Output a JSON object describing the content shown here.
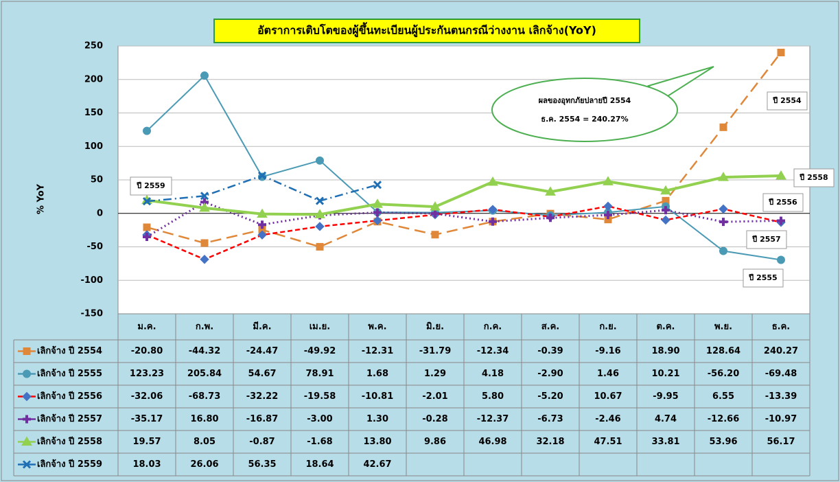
{
  "chart_data": {
    "type": "line",
    "title": "อัตราการเติบโตของผู้ขึ้นทะเบียนผู้ประกันตนกรณีว่างงาน เลิกจ้าง(YoY)",
    "y_label": "% YoY",
    "categories": [
      "ม.ค.",
      "ก.พ.",
      "มี.ค.",
      "เม.ย.",
      "พ.ค.",
      "มิ.ย.",
      "ก.ค.",
      "ส.ค.",
      "ก.ย.",
      "ต.ค.",
      "พ.ย.",
      "ธ.ค."
    ],
    "ylim": [
      -150,
      250
    ],
    "yticks": [
      -150,
      -100,
      -50,
      0,
      50,
      100,
      150,
      200,
      250
    ],
    "grid": true,
    "series": [
      {
        "name": "เลิกจ้าง ปี 2554",
        "color": "#e0883a",
        "values": [
          -20.8,
          -44.32,
          -24.47,
          -49.92,
          -12.31,
          -31.79,
          -12.34,
          -0.39,
          -9.16,
          18.9,
          128.64,
          240.27
        ],
        "value_labels": [
          "-20.80",
          "-44.32",
          "-24.47",
          "-49.92",
          "-12.31",
          "-31.79",
          "-12.34",
          "-0.39",
          "-9.16",
          "18.90",
          "128.64",
          "240.27"
        ]
      },
      {
        "name": "เลิกจ้าง ปี 2555",
        "color": "#4a9ab5",
        "values": [
          123.23,
          205.84,
          54.67,
          78.91,
          1.68,
          1.29,
          4.18,
          -2.9,
          1.46,
          10.21,
          -56.2,
          -69.48
        ],
        "value_labels": [
          "123.23",
          "205.84",
          "54.67",
          "78.91",
          "1.68",
          "1.29",
          "4.18",
          "-2.90",
          "1.46",
          "10.21",
          "-56.20",
          "-69.48"
        ]
      },
      {
        "name": "เลิกจ้าง ปี 2556",
        "color": "#ff0000",
        "values": [
          -32.06,
          -68.73,
          -32.22,
          -19.58,
          -10.81,
          -2.01,
          5.8,
          -5.2,
          10.67,
          -9.95,
          6.55,
          -13.39
        ],
        "value_labels": [
          "-32.06",
          "-68.73",
          "-32.22",
          "-19.58",
          "-10.81",
          "-2.01",
          "5.80",
          "-5.20",
          "10.67",
          "-9.95",
          "6.55",
          "-13.39"
        ]
      },
      {
        "name": "เลิกจ้าง ปี 2557",
        "color": "#7030a0",
        "values": [
          -35.17,
          16.8,
          -16.87,
          -3.0,
          1.3,
          -0.28,
          -12.37,
          -6.73,
          -2.46,
          4.74,
          -12.66,
          -10.97
        ],
        "value_labels": [
          "-35.17",
          "16.80",
          "-16.87",
          "-3.00",
          "1.30",
          "-0.28",
          "-12.37",
          "-6.73",
          "-2.46",
          "4.74",
          "-12.66",
          "-10.97"
        ]
      },
      {
        "name": "เลิกจ้าง ปี 2558",
        "color": "#92d050",
        "values": [
          19.57,
          8.05,
          -0.87,
          -1.68,
          13.8,
          9.86,
          46.98,
          32.18,
          47.51,
          33.81,
          53.96,
          56.17
        ],
        "value_labels": [
          "19.57",
          "8.05",
          "-0.87",
          "-1.68",
          "13.80",
          "9.86",
          "46.98",
          "32.18",
          "47.51",
          "33.81",
          "53.96",
          "56.17"
        ]
      },
      {
        "name": "เลิกจ้าง ปี 2559",
        "color": "#1f6fb5",
        "values": [
          18.03,
          26.06,
          56.35,
          18.64,
          42.67,
          null,
          null,
          null,
          null,
          null,
          null,
          null
        ],
        "value_labels": [
          "18.03",
          "26.06",
          "56.35",
          "18.64",
          "42.67",
          null,
          null,
          null,
          null,
          null,
          null,
          null
        ]
      }
    ],
    "annotations": [
      "ปี 2559",
      "ปี 2554",
      "ปี 2558",
      "ปี 2556",
      "ปี 2557",
      "ปี 2555",
      "ผลของอุทกภัยปลายปี 2554",
      "ธ.ค. 2554 = 240.27%"
    ]
  }
}
